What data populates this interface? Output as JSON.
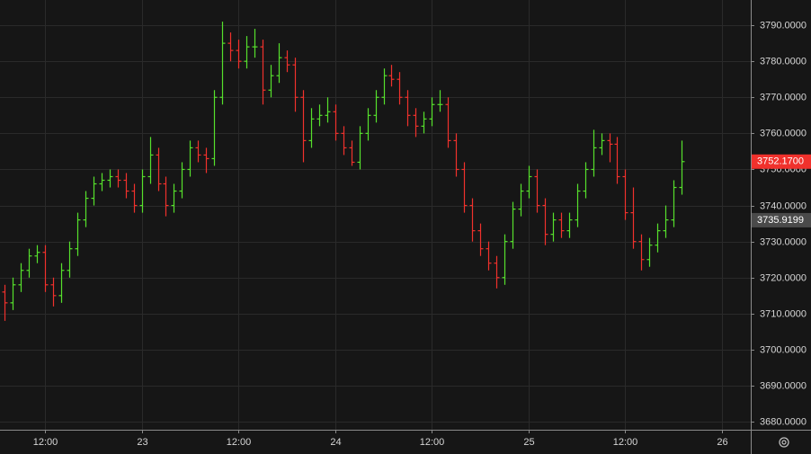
{
  "chart_data": {
    "type": "ohlc",
    "x": [
      7,
      8,
      9,
      10,
      11,
      12,
      13,
      14,
      15,
      16,
      17,
      18,
      19,
      20,
      21,
      22,
      23,
      24,
      25,
      26,
      27,
      28,
      29,
      30,
      31,
      32,
      33,
      34,
      35,
      36,
      37,
      38,
      39,
      40,
      41,
      42,
      43,
      44,
      45,
      46,
      47,
      48,
      49,
      50,
      51,
      52,
      53,
      54,
      55,
      56,
      57,
      58,
      59,
      60,
      61,
      62,
      63,
      64,
      65,
      66,
      67,
      68,
      69,
      70,
      71,
      72,
      73,
      74,
      75,
      76,
      77,
      78,
      79,
      80,
      81,
      82,
      83,
      84,
      85,
      86,
      87,
      88,
      89,
      90,
      91
    ],
    "open": [
      3716,
      3713,
      3718,
      3722,
      3726,
      3727,
      3718,
      3715,
      3722,
      3728,
      3736,
      3742,
      3746,
      3747,
      3748,
      3747,
      3744,
      3740,
      3748,
      3754,
      3746,
      3740,
      3744,
      3750,
      3756,
      3754,
      3753,
      3770,
      3785,
      3783,
      3780,
      3784,
      3784,
      3772,
      3776,
      3781,
      3779,
      3770,
      3758,
      3764,
      3765,
      3766,
      3760,
      3756,
      3752,
      3760,
      3765,
      3770,
      3776,
      3775,
      3770,
      3765,
      3762,
      3764,
      3768,
      3768,
      3758,
      3750,
      3740,
      3733,
      3728,
      3724,
      3720,
      3730,
      3739,
      3744,
      3748,
      3740,
      3732,
      3736,
      3733,
      3736,
      3744,
      3750,
      3756,
      3758,
      3757,
      3748,
      3738,
      3730,
      3725,
      3729,
      3733,
      3736,
      3745
    ],
    "high": [
      3718,
      3720,
      3724,
      3728,
      3729,
      3729,
      3720,
      3724,
      3730,
      3738,
      3744,
      3748,
      3749,
      3750,
      3750,
      3749,
      3746,
      3750,
      3759,
      3756,
      3748,
      3746,
      3752,
      3758,
      3758,
      3756,
      3772,
      3791,
      3788,
      3786,
      3787,
      3789,
      3786,
      3779,
      3785,
      3783,
      3781,
      3772,
      3767,
      3768,
      3770,
      3768,
      3762,
      3758,
      3762,
      3767,
      3772,
      3778,
      3779,
      3777,
      3772,
      3767,
      3766,
      3770,
      3772,
      3770,
      3760,
      3752,
      3742,
      3735,
      3730,
      3726,
      3732,
      3741,
      3746,
      3751,
      3750,
      3742,
      3738,
      3738,
      3738,
      3746,
      3752,
      3761,
      3760,
      3760,
      3759,
      3750,
      3745,
      3732,
      3731,
      3735,
      3740,
      3747,
      3758
    ],
    "low": [
      3708,
      3711,
      3716,
      3720,
      3724,
      3716,
      3712,
      3713,
      3720,
      3726,
      3734,
      3740,
      3744,
      3745,
      3745,
      3742,
      3738,
      3738,
      3746,
      3744,
      3737,
      3738,
      3742,
      3748,
      3752,
      3749,
      3751,
      3768,
      3780,
      3778,
      3778,
      3781,
      3768,
      3770,
      3774,
      3777,
      3766,
      3752,
      3756,
      3762,
      3763,
      3758,
      3754,
      3751,
      3750,
      3758,
      3763,
      3768,
      3773,
      3768,
      3762,
      3759,
      3760,
      3762,
      3766,
      3756,
      3748,
      3738,
      3730,
      3726,
      3722,
      3717,
      3718,
      3728,
      3737,
      3742,
      3738,
      3729,
      3730,
      3731,
      3731,
      3734,
      3742,
      3748,
      3754,
      3752,
      3746,
      3736,
      3728,
      3722,
      3723,
      3727,
      3731,
      3734,
      3743
    ],
    "close": [
      3713,
      3718,
      3722,
      3726,
      3727,
      3718,
      3715,
      3722,
      3728,
      3736,
      3742,
      3746,
      3747,
      3748,
      3747,
      3744,
      3740,
      3748,
      3754,
      3746,
      3740,
      3744,
      3750,
      3756,
      3754,
      3753,
      3770,
      3785,
      3783,
      3780,
      3784,
      3784,
      3772,
      3776,
      3781,
      3779,
      3770,
      3758,
      3764,
      3765,
      3766,
      3760,
      3756,
      3752,
      3760,
      3765,
      3770,
      3776,
      3775,
      3770,
      3765,
      3762,
      3764,
      3768,
      3768,
      3758,
      3750,
      3740,
      3733,
      3728,
      3724,
      3720,
      3730,
      3739,
      3744,
      3748,
      3740,
      3732,
      3736,
      3733,
      3736,
      3744,
      3750,
      3756,
      3758,
      3757,
      3748,
      3738,
      3730,
      3725,
      3729,
      3733,
      3736,
      3745,
      3752.17
    ],
    "up_color": "#56e02c",
    "down_color": "#f0312c",
    "xlim": [
      6.42,
      99.57
    ],
    "xticks": [
      {
        "value": 12,
        "label": "12:00"
      },
      {
        "value": 24,
        "label": "23"
      },
      {
        "value": 36,
        "label": "12:00"
      },
      {
        "value": 48,
        "label": "24"
      },
      {
        "value": 60,
        "label": "12:00"
      },
      {
        "value": 72,
        "label": "25"
      },
      {
        "value": 84,
        "label": "12:00"
      },
      {
        "value": 96,
        "label": "26"
      }
    ],
    "ylim": [
      3677.8,
      3797.0
    ],
    "yticks": [
      {
        "value": 3680,
        "label": "3680.0000"
      },
      {
        "value": 3690,
        "label": "3690.0000"
      },
      {
        "value": 3700,
        "label": "3700.0000"
      },
      {
        "value": 3710,
        "label": "3710.0000"
      },
      {
        "value": 3720,
        "label": "3720.0000"
      },
      {
        "value": 3730,
        "label": "3730.0000"
      },
      {
        "value": 3740,
        "label": "3740.0000"
      },
      {
        "value": 3750,
        "label": "3750.0000"
      },
      {
        "value": 3760,
        "label": "3760.0000"
      },
      {
        "value": 3770,
        "label": "3770.0000"
      },
      {
        "value": 3780,
        "label": "3780.0000"
      },
      {
        "value": 3790,
        "label": "3790.0000"
      }
    ],
    "grid": true,
    "last_price": {
      "value": 3752.17,
      "label": "3752.1700",
      "color": "#f0312c"
    },
    "indicator_price": {
      "value": 3735.9199,
      "label": "3735.9199",
      "color": "#4a4a4a"
    }
  }
}
